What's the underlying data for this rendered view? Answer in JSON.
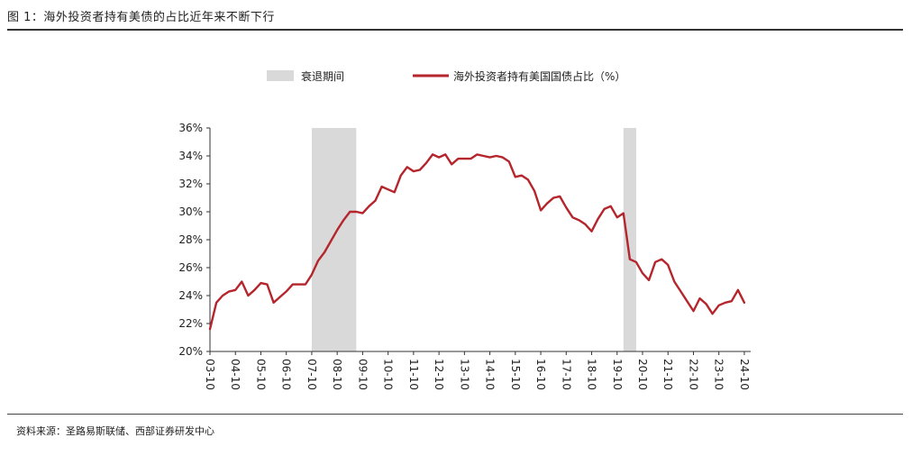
{
  "figure": {
    "title": "图 1：海外投资者持有美债的占比近年来不断下行",
    "source": "资料来源：圣路易斯联储、西部证券研发中心"
  },
  "chart_data": {
    "type": "line",
    "title": "图 1：海外投资者持有美债的占比近年来不断下行",
    "xlabel": "",
    "ylabel": "",
    "ylim": [
      20,
      36
    ],
    "yticks": [
      "20%",
      "22%",
      "24%",
      "26%",
      "28%",
      "30%",
      "32%",
      "34%",
      "36%"
    ],
    "ytick_values": [
      20,
      22,
      24,
      26,
      28,
      30,
      32,
      34,
      36
    ],
    "xticks": [
      "03-10",
      "04-10",
      "05-10",
      "06-10",
      "07-10",
      "08-10",
      "09-10",
      "10-10",
      "11-10",
      "12-10",
      "13-10",
      "14-10",
      "15-10",
      "16-10",
      "17-10",
      "18-10",
      "19-10",
      "20-10",
      "21-10",
      "22-10",
      "23-10",
      "24-10"
    ],
    "xlim": [
      2003.75,
      2025.0
    ],
    "legend": [
      "衰退期间",
      "海外投资者持有美国国债占比（%）"
    ],
    "legend_position": "top-center",
    "recessions": [
      [
        2007.75,
        2009.5
      ],
      [
        2020.0,
        2020.5
      ]
    ],
    "series": [
      {
        "name": "海外投资者持有美国国债占比（%）",
        "color": "#b5252c",
        "x": [
          2003.75,
          2004.0,
          2004.25,
          2004.5,
          2004.75,
          2005.0,
          2005.25,
          2005.5,
          2005.75,
          2006.0,
          2006.25,
          2006.5,
          2006.75,
          2007.0,
          2007.25,
          2007.5,
          2007.75,
          2008.0,
          2008.25,
          2008.5,
          2008.75,
          2009.0,
          2009.25,
          2009.5,
          2009.75,
          2010.0,
          2010.25,
          2010.5,
          2010.75,
          2011.0,
          2011.25,
          2011.5,
          2011.75,
          2012.0,
          2012.25,
          2012.5,
          2012.75,
          2013.0,
          2013.25,
          2013.5,
          2013.75,
          2014.0,
          2014.25,
          2014.5,
          2014.75,
          2015.0,
          2015.25,
          2015.5,
          2015.75,
          2016.0,
          2016.25,
          2016.5,
          2016.75,
          2017.0,
          2017.25,
          2017.5,
          2017.75,
          2018.0,
          2018.25,
          2018.5,
          2018.75,
          2019.0,
          2019.25,
          2019.5,
          2019.75,
          2020.0,
          2020.25,
          2020.5,
          2020.75,
          2021.0,
          2021.25,
          2021.5,
          2021.75,
          2022.0,
          2022.25,
          2022.5,
          2022.75,
          2023.0,
          2023.25,
          2023.5,
          2023.75,
          2024.0,
          2024.25,
          2024.5,
          2024.75
        ],
        "values": [
          21.6,
          23.5,
          24.0,
          24.3,
          24.4,
          25.0,
          24.0,
          24.4,
          24.9,
          24.8,
          23.5,
          23.9,
          24.3,
          24.8,
          24.8,
          24.8,
          25.5,
          26.5,
          27.1,
          27.9,
          28.7,
          29.4,
          30.0,
          30.0,
          29.9,
          30.4,
          30.8,
          31.8,
          31.6,
          31.4,
          32.6,
          33.2,
          32.9,
          33.0,
          33.5,
          34.1,
          33.9,
          34.1,
          33.4,
          33.8,
          33.8,
          33.8,
          34.1,
          34.0,
          33.9,
          34.0,
          33.9,
          33.6,
          32.5,
          32.6,
          32.3,
          31.5,
          30.1,
          30.6,
          31.0,
          31.1,
          30.3,
          29.6,
          29.4,
          29.1,
          28.6,
          29.5,
          30.2,
          30.4,
          29.6,
          29.9,
          26.6,
          26.4,
          25.6,
          25.1,
          26.4,
          26.6,
          26.2,
          25.0,
          24.3,
          23.6,
          22.9,
          23.8,
          23.4,
          22.7,
          23.3,
          23.5,
          23.6,
          24.4,
          23.5
        ]
      }
    ]
  },
  "colors": {
    "line": "#b5252c",
    "recession": "#d9d9d9",
    "axis": "#333333"
  }
}
